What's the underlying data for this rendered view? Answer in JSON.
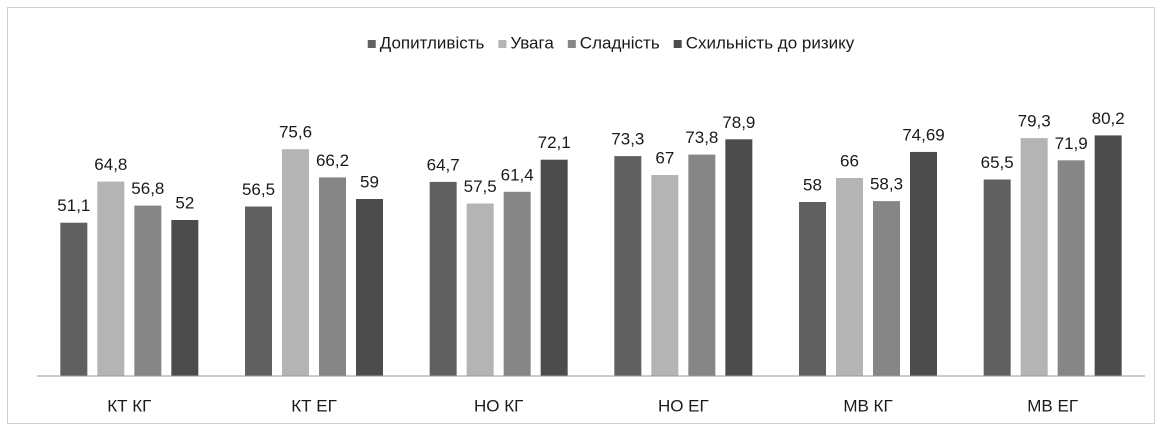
{
  "chart_data": {
    "type": "bar",
    "categories": [
      "КТ КГ",
      "КТ ЕГ",
      "НО КГ",
      "НО ЕГ",
      "МВ КГ",
      "МВ ЕГ"
    ],
    "series": [
      {
        "name": "Допитливість",
        "color": "#606060",
        "values": [
          51.1,
          56.5,
          64.7,
          73.3,
          58,
          65.5
        ],
        "value_labels": [
          "51,1",
          "56,5",
          "64,7",
          "73,3",
          "58",
          "65,5"
        ]
      },
      {
        "name": "Увага",
        "color": "#b4b4b4",
        "values": [
          64.8,
          75.6,
          57.5,
          67,
          66,
          79.3
        ],
        "value_labels": [
          "64,8",
          "75,6",
          "57,5",
          "67",
          "66",
          "79,3"
        ]
      },
      {
        "name": "Сладність",
        "color": "#868686",
        "values": [
          56.8,
          66.2,
          61.4,
          73.8,
          58.3,
          71.9
        ],
        "value_labels": [
          "56,8",
          "66,2",
          "61,4",
          "73,8",
          "58,3",
          "71,9"
        ]
      },
      {
        "name": "Схильність до ризику",
        "color": "#4c4c4c",
        "values": [
          52,
          59,
          72.1,
          78.9,
          74.69,
          80.2
        ],
        "value_labels": [
          "52",
          "59",
          "72,1",
          "78,9",
          "74,69",
          "80,2"
        ]
      }
    ],
    "ylim": [
      0,
      100
    ],
    "legend": "top",
    "grid": false
  }
}
